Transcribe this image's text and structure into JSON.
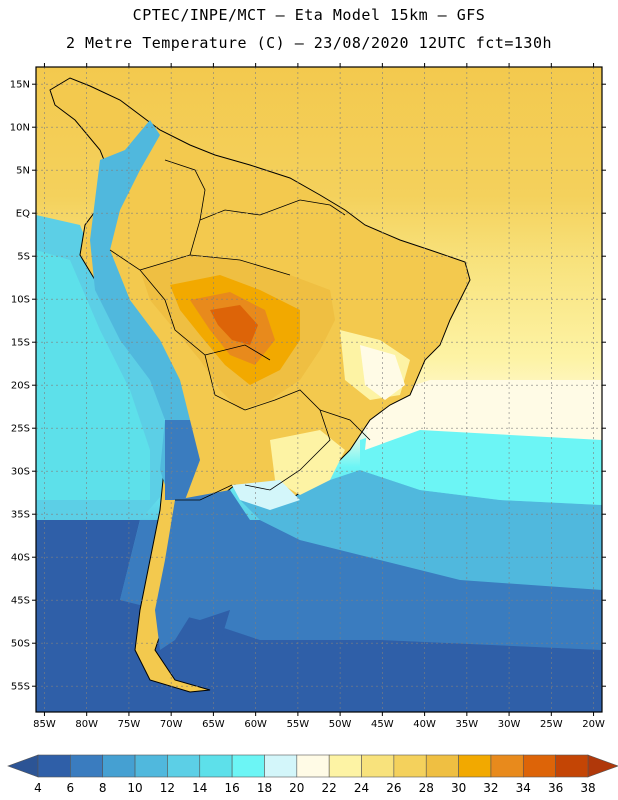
{
  "title_line1": "CPTEC/INPE/MCT –  Eta Model 15km – GFS",
  "title_line2": "2 Metre Temperature (C) – 23/08/2020 12UTC fct=130h",
  "map": {
    "lon_range": [
      -86,
      -19
    ],
    "lat_range": [
      -58,
      17
    ],
    "lon_ticks": [
      {
        "value": -85,
        "label": "85W"
      },
      {
        "value": -80,
        "label": "80W"
      },
      {
        "value": -75,
        "label": "75W"
      },
      {
        "value": -70,
        "label": "70W"
      },
      {
        "value": -65,
        "label": "65W"
      },
      {
        "value": -60,
        "label": "60W"
      },
      {
        "value": -55,
        "label": "55W"
      },
      {
        "value": -50,
        "label": "50W"
      },
      {
        "value": -45,
        "label": "45W"
      },
      {
        "value": -40,
        "label": "40W"
      },
      {
        "value": -35,
        "label": "35W"
      },
      {
        "value": -30,
        "label": "30W"
      },
      {
        "value": -25,
        "label": "25W"
      },
      {
        "value": -20,
        "label": "20W"
      }
    ],
    "lat_ticks": [
      {
        "value": 15,
        "label": "15N"
      },
      {
        "value": 10,
        "label": "10N"
      },
      {
        "value": 5,
        "label": "5N"
      },
      {
        "value": 0,
        "label": "EQ"
      },
      {
        "value": -5,
        "label": "5S"
      },
      {
        "value": -10,
        "label": "10S"
      },
      {
        "value": -15,
        "label": "15S"
      },
      {
        "value": -20,
        "label": "20S"
      },
      {
        "value": -25,
        "label": "25S"
      },
      {
        "value": -30,
        "label": "30S"
      },
      {
        "value": -35,
        "label": "35S"
      },
      {
        "value": -40,
        "label": "40S"
      },
      {
        "value": -45,
        "label": "45S"
      },
      {
        "value": -50,
        "label": "50S"
      },
      {
        "value": -55,
        "label": "55S"
      }
    ]
  },
  "colorbar": {
    "labels": [
      "4",
      "6",
      "8",
      "10",
      "12",
      "14",
      "16",
      "18",
      "20",
      "22",
      "24",
      "26",
      "28",
      "30",
      "32",
      "34",
      "36",
      "38"
    ],
    "colors": [
      "#2f5fa8",
      "#3a7cbf",
      "#45a0d2",
      "#50b8dd",
      "#5ccfe6",
      "#5de0ea",
      "#6cf5f5",
      "#d3f6fa",
      "#fffbe6",
      "#fdf3a4",
      "#f8e27c",
      "#f4d15c",
      "#efbf42",
      "#f2a900",
      "#e88a1c",
      "#dd6408",
      "#c44505"
    ],
    "low_color": "#2c5495",
    "high_color": "#b0380a"
  }
}
